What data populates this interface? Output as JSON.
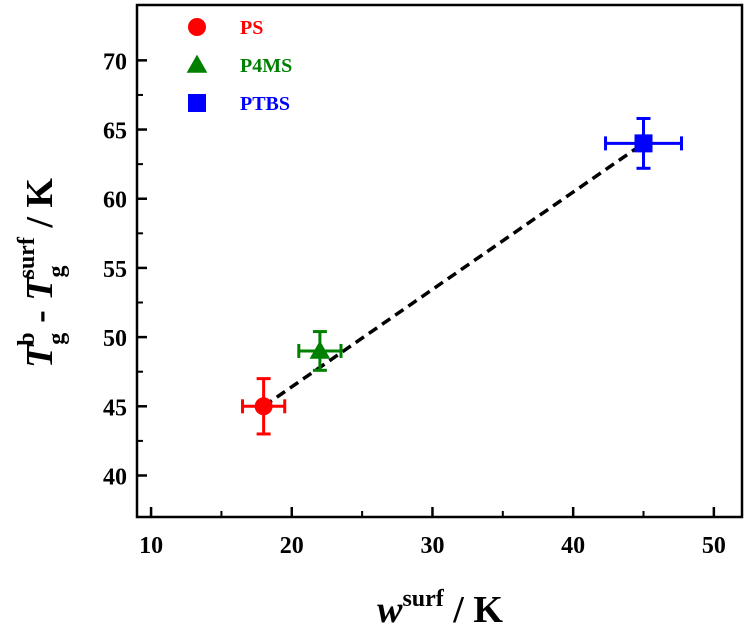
{
  "chart_data": {
    "type": "scatter",
    "xlim": [
      9,
      52
    ],
    "ylim": [
      37,
      74
    ],
    "x_ticks": [
      10,
      20,
      30,
      40,
      50
    ],
    "y_ticks": [
      40,
      45,
      50,
      55,
      60,
      65,
      70
    ],
    "x_tick_labels": [
      "10",
      "20",
      "30",
      "40",
      "50"
    ],
    "y_tick_labels": [
      "40",
      "45",
      "50",
      "55",
      "60",
      "65",
      "70"
    ],
    "xlabel": {
      "main": "w",
      "sup": "surf",
      "unit": " / K"
    },
    "ylabel": {
      "t1": "T",
      "t1_sub": "g",
      "t1_sup": "b",
      "dash": " - ",
      "t2": "T",
      "t2_sub": "g",
      "t2_sup": "surf",
      "unit": " / K"
    },
    "series": [
      {
        "name": "PS",
        "marker": "circle",
        "color": "#ff0000",
        "points": [
          {
            "x": 18,
            "y": 45,
            "xerr": 1.5,
            "yerr": 2.0
          }
        ]
      },
      {
        "name": "P4MS",
        "marker": "triangle",
        "color": "#008000",
        "points": [
          {
            "x": 22,
            "y": 49,
            "xerr": 1.5,
            "yerr": 1.4
          }
        ]
      },
      {
        "name": "PTBS",
        "marker": "square",
        "color": "#0000ff",
        "points": [
          {
            "x": 45,
            "y": 64,
            "xerr": 2.7,
            "yerr": 1.8
          }
        ]
      }
    ],
    "fit_line": {
      "style": "dashed",
      "color": "#000000",
      "x": [
        18,
        45
      ],
      "y": [
        45,
        64
      ]
    },
    "legend_position": "top-left",
    "grid": false
  }
}
